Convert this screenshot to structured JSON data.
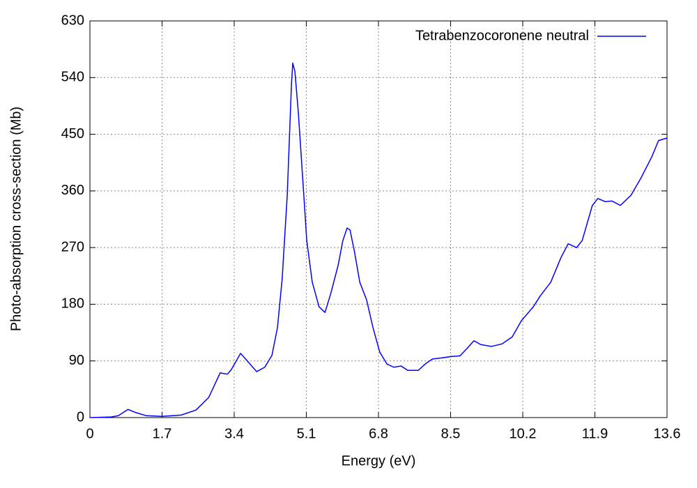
{
  "chart_data": {
    "type": "line",
    "xlabel": "Energy (eV)",
    "ylabel": "Photo-absorption cross-section (Mb)",
    "xlim": [
      0,
      13.6
    ],
    "ylim": [
      0,
      630
    ],
    "xticks": [
      0,
      1.7,
      3.4,
      5.1,
      6.8,
      8.5,
      10.2,
      11.9,
      13.6
    ],
    "yticks": [
      0,
      90,
      180,
      270,
      360,
      450,
      540,
      630
    ],
    "grid": true,
    "legend": "upper right",
    "x": [
      0,
      0.5,
      0.67,
      0.9,
      1.08,
      1.33,
      1.7,
      2.15,
      2.5,
      2.8,
      3.07,
      3.24,
      3.33,
      3.55,
      3.71,
      3.93,
      4.12,
      4.29,
      4.42,
      4.53,
      4.65,
      4.75,
      4.78,
      4.83,
      4.91,
      5.03,
      5.11,
      5.24,
      5.4,
      5.54,
      5.68,
      5.85,
      5.96,
      6.06,
      6.13,
      6.23,
      6.36,
      6.52,
      6.67,
      6.83,
      7.0,
      7.16,
      7.33,
      7.49,
      7.74,
      7.9,
      8.07,
      8.31,
      8.52,
      8.72,
      8.89,
      9.05,
      9.21,
      9.46,
      9.71,
      9.95,
      10.17,
      10.45,
      10.61,
      10.86,
      11.1,
      11.27,
      11.47,
      11.6,
      11.84,
      11.97,
      12.14,
      12.3,
      12.5,
      12.75,
      12.99,
      13.24,
      13.4,
      13.6
    ],
    "series": [
      {
        "name": "Tetrabenzocoronene neutral",
        "color": "#0000ff",
        "values": [
          0,
          1,
          3,
          13,
          8,
          3,
          2,
          4,
          12,
          32,
          71,
          69,
          76,
          102,
          90,
          73,
          80,
          99,
          143,
          220,
          353,
          530,
          563,
          550,
          486,
          364,
          281,
          215,
          176,
          167,
          198,
          242,
          281,
          301,
          298,
          265,
          215,
          187,
          143,
          104,
          85,
          80,
          82,
          75,
          75,
          85,
          93,
          95,
          97,
          98,
          110,
          122,
          116,
          113,
          117,
          128,
          154,
          176,
          193,
          215,
          254,
          276,
          270,
          281,
          337,
          348,
          343,
          344,
          337,
          353,
          381,
          414,
          440,
          444
        ]
      }
    ]
  }
}
